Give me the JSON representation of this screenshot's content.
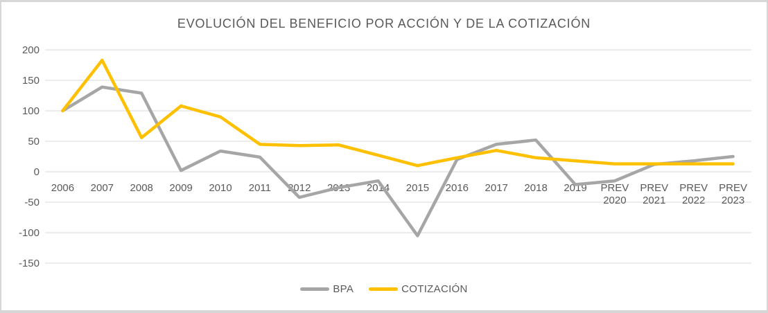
{
  "chart_data": {
    "type": "line",
    "title": "EVOLUCIÓN DEL BENEFICIO POR ACCIÓN Y DE LA COTIZACIÓN",
    "categories": [
      "2006",
      "2007",
      "2008",
      "2009",
      "2010",
      "2011",
      "2012",
      "2013",
      "2014",
      "2015",
      "2016",
      "2017",
      "2018",
      "2019",
      "PREV 2020",
      "PREV 2021",
      "PREV 2022",
      "PREV 2023"
    ],
    "series": [
      {
        "name": "BPA",
        "color": "#A6A6A6",
        "values": [
          100,
          139,
          129,
          2,
          34,
          24,
          -42,
          -26,
          -15,
          -105,
          20,
          45,
          52,
          -21,
          -15,
          12,
          18,
          25
        ]
      },
      {
        "name": "COTIZACIÓN",
        "color": "#FFC000",
        "values": [
          100,
          183,
          56,
          108,
          90,
          45,
          43,
          44,
          27,
          10,
          23,
          35,
          23,
          18,
          13,
          13,
          13,
          13
        ]
      }
    ],
    "y_ticks": [
      200,
      150,
      100,
      50,
      0,
      -50,
      -100,
      -150
    ],
    "ylim": [
      -175,
      215
    ],
    "grid": true,
    "legend_position": "bottom",
    "axis_text_color": "#595959",
    "gridline_color": "#D9D9D9",
    "title_color": "#595959",
    "background": "#FFFFFF",
    "frame_color": "#D6D6D6"
  }
}
